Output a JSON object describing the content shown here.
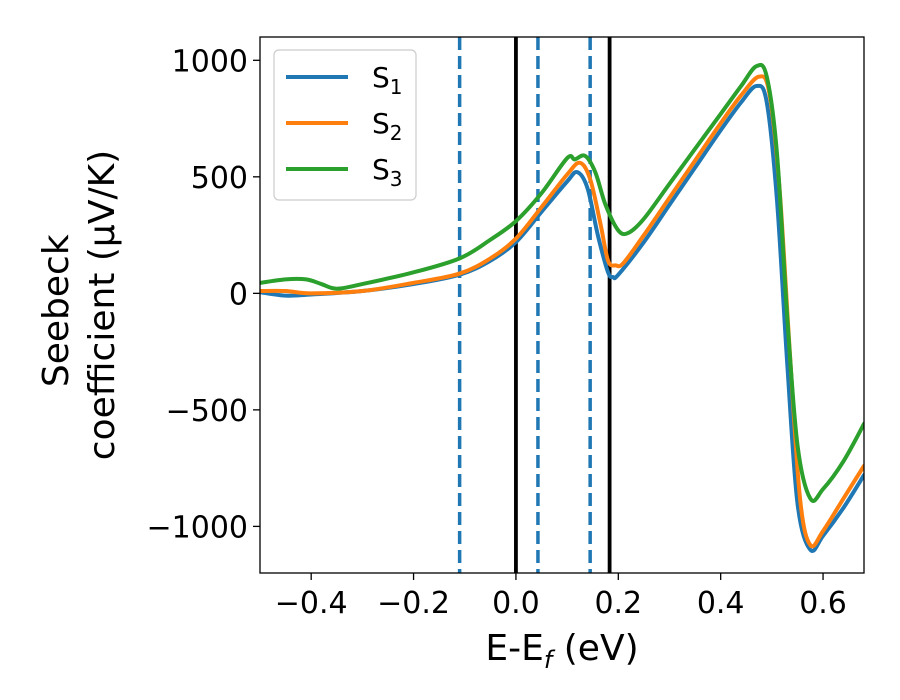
{
  "chart_data": {
    "type": "line",
    "xlabel": {
      "main": "E-E",
      "sub": "f",
      "unit": " (eV)"
    },
    "ylabel": {
      "line1": "Seebeck",
      "line2": "coefficient  (μV/K)"
    },
    "xlim": [
      -0.5,
      0.68
    ],
    "ylim": [
      -1200,
      1100
    ],
    "xticks": [
      -0.4,
      -0.2,
      0.0,
      0.2,
      0.4,
      0.6
    ],
    "xtick_labels": [
      "−0.4",
      "−0.2",
      "0.0",
      "0.2",
      "0.4",
      "0.6"
    ],
    "yticks": [
      -1000,
      -500,
      0,
      500,
      1000
    ],
    "ytick_labels": [
      "−1000",
      "−500",
      "0",
      "500",
      "1000"
    ],
    "grid": false,
    "legend_position": "top-left",
    "vlines": [
      {
        "x": -0.11,
        "style": "dashed",
        "color": "#1f77b4"
      },
      {
        "x": 0.0,
        "style": "solid",
        "color": "#000000"
      },
      {
        "x": 0.043,
        "style": "dashed",
        "color": "#1f77b4"
      },
      {
        "x": 0.145,
        "style": "dashed",
        "color": "#1f77b4"
      },
      {
        "x": 0.183,
        "style": "solid",
        "color": "#000000"
      }
    ],
    "series": [
      {
        "name": "S",
        "sub": "1",
        "color": "#1f77b4",
        "points": [
          [
            -0.5,
            5
          ],
          [
            -0.45,
            -10
          ],
          [
            -0.4,
            -5
          ],
          [
            -0.3,
            10
          ],
          [
            -0.2,
            40
          ],
          [
            -0.11,
            80
          ],
          [
            -0.05,
            140
          ],
          [
            0.0,
            220
          ],
          [
            0.05,
            350
          ],
          [
            0.1,
            480
          ],
          [
            0.12,
            520
          ],
          [
            0.14,
            450
          ],
          [
            0.16,
            250
          ],
          [
            0.18,
            90
          ],
          [
            0.19,
            70
          ],
          [
            0.2,
            80
          ],
          [
            0.25,
            220
          ],
          [
            0.3,
            380
          ],
          [
            0.35,
            540
          ],
          [
            0.4,
            700
          ],
          [
            0.44,
            820
          ],
          [
            0.47,
            890
          ],
          [
            0.49,
            820
          ],
          [
            0.51,
            400
          ],
          [
            0.53,
            -300
          ],
          [
            0.55,
            -900
          ],
          [
            0.575,
            -1100
          ],
          [
            0.6,
            -1040
          ],
          [
            0.64,
            -920
          ],
          [
            0.68,
            -780
          ]
        ]
      },
      {
        "name": "S",
        "sub": "2",
        "color": "#ff7f0e",
        "points": [
          [
            -0.5,
            10
          ],
          [
            -0.45,
            10
          ],
          [
            -0.4,
            0
          ],
          [
            -0.3,
            10
          ],
          [
            -0.2,
            45
          ],
          [
            -0.11,
            85
          ],
          [
            -0.05,
            150
          ],
          [
            0.0,
            235
          ],
          [
            0.05,
            370
          ],
          [
            0.1,
            510
          ],
          [
            0.125,
            560
          ],
          [
            0.145,
            490
          ],
          [
            0.165,
            300
          ],
          [
            0.18,
            140
          ],
          [
            0.195,
            120
          ],
          [
            0.21,
            130
          ],
          [
            0.25,
            250
          ],
          [
            0.3,
            410
          ],
          [
            0.35,
            570
          ],
          [
            0.4,
            730
          ],
          [
            0.44,
            850
          ],
          [
            0.475,
            930
          ],
          [
            0.495,
            860
          ],
          [
            0.515,
            450
          ],
          [
            0.535,
            -250
          ],
          [
            0.555,
            -880
          ],
          [
            0.575,
            -1080
          ],
          [
            0.6,
            -1020
          ],
          [
            0.64,
            -880
          ],
          [
            0.68,
            -740
          ]
        ]
      },
      {
        "name": "S",
        "sub": "3",
        "color": "#2ca02c",
        "points": [
          [
            -0.5,
            45
          ],
          [
            -0.45,
            60
          ],
          [
            -0.41,
            60
          ],
          [
            -0.38,
            40
          ],
          [
            -0.35,
            20
          ],
          [
            -0.3,
            40
          ],
          [
            -0.2,
            90
          ],
          [
            -0.11,
            150
          ],
          [
            -0.05,
            230
          ],
          [
            0.0,
            310
          ],
          [
            0.05,
            430
          ],
          [
            0.1,
            580
          ],
          [
            0.115,
            575
          ],
          [
            0.135,
            590
          ],
          [
            0.155,
            520
          ],
          [
            0.175,
            380
          ],
          [
            0.2,
            270
          ],
          [
            0.22,
            260
          ],
          [
            0.25,
            320
          ],
          [
            0.3,
            470
          ],
          [
            0.35,
            620
          ],
          [
            0.4,
            770
          ],
          [
            0.44,
            890
          ],
          [
            0.47,
            975
          ],
          [
            0.49,
            930
          ],
          [
            0.51,
            600
          ],
          [
            0.53,
            -100
          ],
          [
            0.55,
            -650
          ],
          [
            0.575,
            -880
          ],
          [
            0.6,
            -840
          ],
          [
            0.64,
            -720
          ],
          [
            0.68,
            -560
          ]
        ]
      }
    ]
  }
}
